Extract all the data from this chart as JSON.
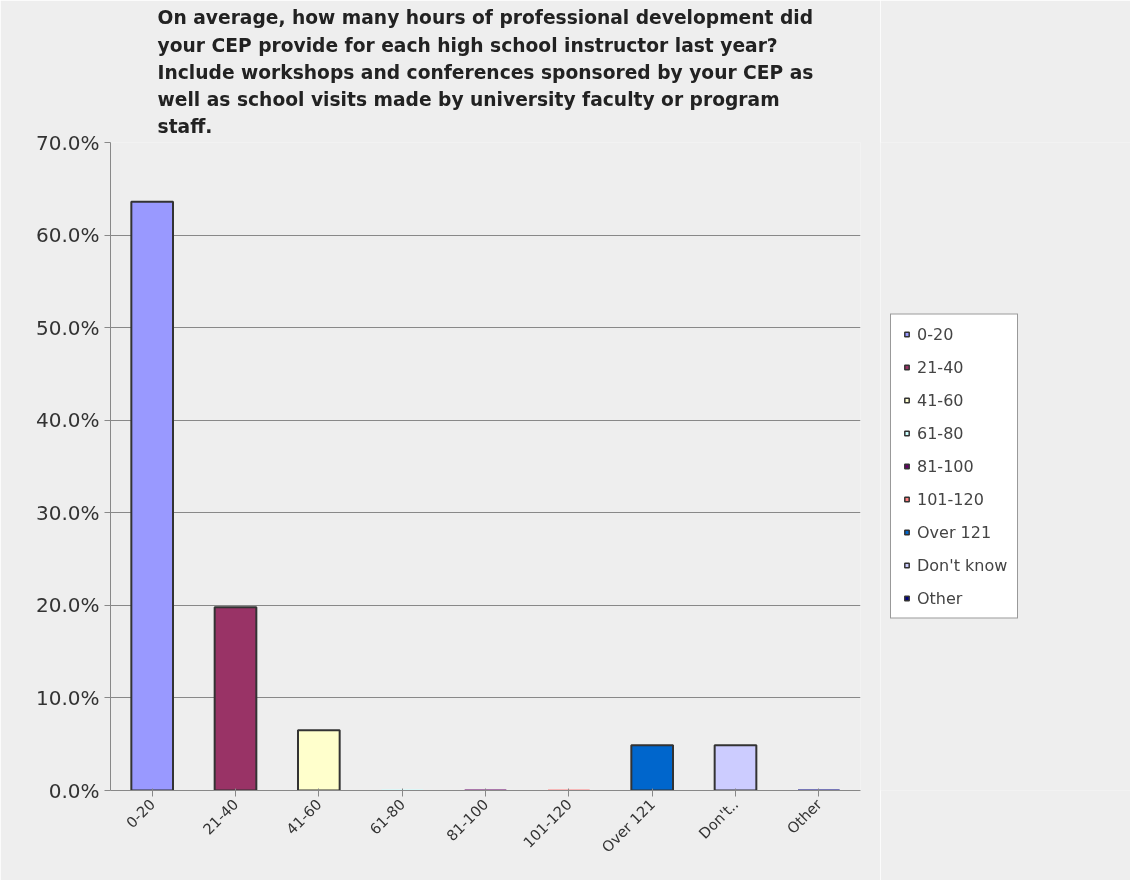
{
  "chart_data": {
    "type": "bar",
    "title": "On average, how many hours of professional development did your CEP provide for each high school instructor last year? Include workshops and conferences sponsored by your CEP as well as school visits made by university faculty or program staff.",
    "categories": [
      "0-20",
      "21-40",
      "41-60",
      "61-80",
      "81-100",
      "101-120",
      "Over 121",
      "Don't..",
      "Other"
    ],
    "series": [
      {
        "name": "0-20",
        "color": "#9999ff",
        "values": [
          63.6,
          null,
          null,
          null,
          null,
          null,
          null,
          null,
          null
        ]
      },
      {
        "name": "21-40",
        "color": "#993366",
        "values": [
          null,
          19.8,
          null,
          null,
          null,
          null,
          null,
          null,
          null
        ]
      },
      {
        "name": "41-60",
        "color": "#ffffcc",
        "values": [
          null,
          null,
          6.5,
          null,
          null,
          null,
          null,
          null,
          null
        ]
      },
      {
        "name": "61-80",
        "color": "#ccffff",
        "values": [
          null,
          null,
          null,
          0,
          null,
          null,
          null,
          null,
          null
        ]
      },
      {
        "name": "81-100",
        "color": "#660066",
        "values": [
          null,
          null,
          null,
          null,
          0,
          null,
          null,
          null,
          null
        ]
      },
      {
        "name": "101-120",
        "color": "#ff8080",
        "values": [
          null,
          null,
          null,
          null,
          null,
          0,
          null,
          null,
          null
        ]
      },
      {
        "name": "Over 121",
        "color": "#0066cc",
        "values": [
          null,
          null,
          null,
          null,
          null,
          null,
          4.9,
          null,
          null
        ]
      },
      {
        "name": "Don't know",
        "color": "#ccccff",
        "values": [
          null,
          null,
          null,
          null,
          null,
          null,
          null,
          4.9,
          null
        ]
      },
      {
        "name": "Other",
        "color": "#000080",
        "values": [
          null,
          null,
          null,
          null,
          null,
          null,
          null,
          null,
          0
        ]
      }
    ],
    "ylim": [
      0,
      70
    ],
    "yticks": [
      {
        "value": 0,
        "label": "0.0%"
      },
      {
        "value": 10,
        "label": "10.0%"
      },
      {
        "value": 20,
        "label": "20.0%"
      },
      {
        "value": 30,
        "label": "30.0%"
      },
      {
        "value": 40,
        "label": "40.0%"
      },
      {
        "value": 50,
        "label": "50.0%"
      },
      {
        "value": 60,
        "label": "60.0%"
      },
      {
        "value": 70,
        "label": "70.0%"
      }
    ],
    "grid": "y",
    "legend": "right"
  }
}
